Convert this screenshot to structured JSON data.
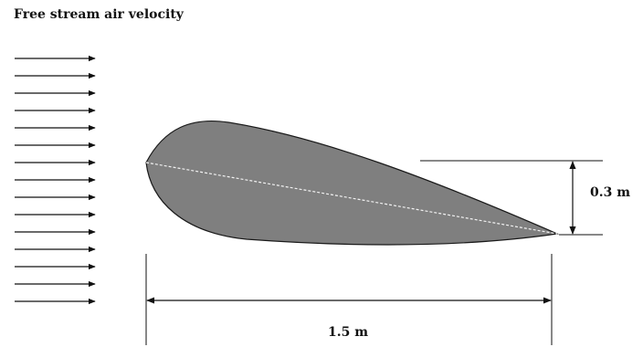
{
  "title": "Free stream air velocity",
  "flow": {
    "arrow_count": 15,
    "direction": "left-to-right"
  },
  "airfoil": {
    "fill_color": "#7f7f7f",
    "outline_color": "#1a1a1a",
    "chord_line": "dashed"
  },
  "dimensions": {
    "thickness": "0.3 m",
    "chord_length": "1.5 m"
  }
}
